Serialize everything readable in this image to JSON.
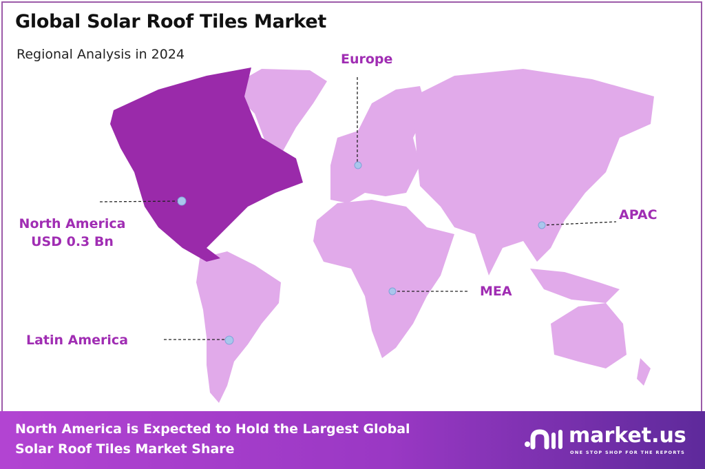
{
  "header": {
    "title": "Global Solar Roof Tiles Market",
    "subtitle": "Regional Analysis in 2024"
  },
  "map": {
    "highlight_color": "#9a2aaa",
    "base_color": "#e1aaea",
    "marker_color": "#a9c6ec",
    "regions": [
      {
        "name": "North America",
        "value": "USD 0.3 Bn",
        "highlighted": true
      },
      {
        "name": "Europe",
        "highlighted": false
      },
      {
        "name": "APAC",
        "highlighted": false
      },
      {
        "name": "MEA",
        "highlighted": false
      },
      {
        "name": "Latin America",
        "highlighted": false
      }
    ]
  },
  "footer": {
    "line1": "North America is Expected to Hold the Largest Global",
    "line2": "Solar Roof Tiles Market Share",
    "logo_word": "market.us",
    "logo_tagline": "ONE STOP SHOP FOR THE REPORTS"
  }
}
